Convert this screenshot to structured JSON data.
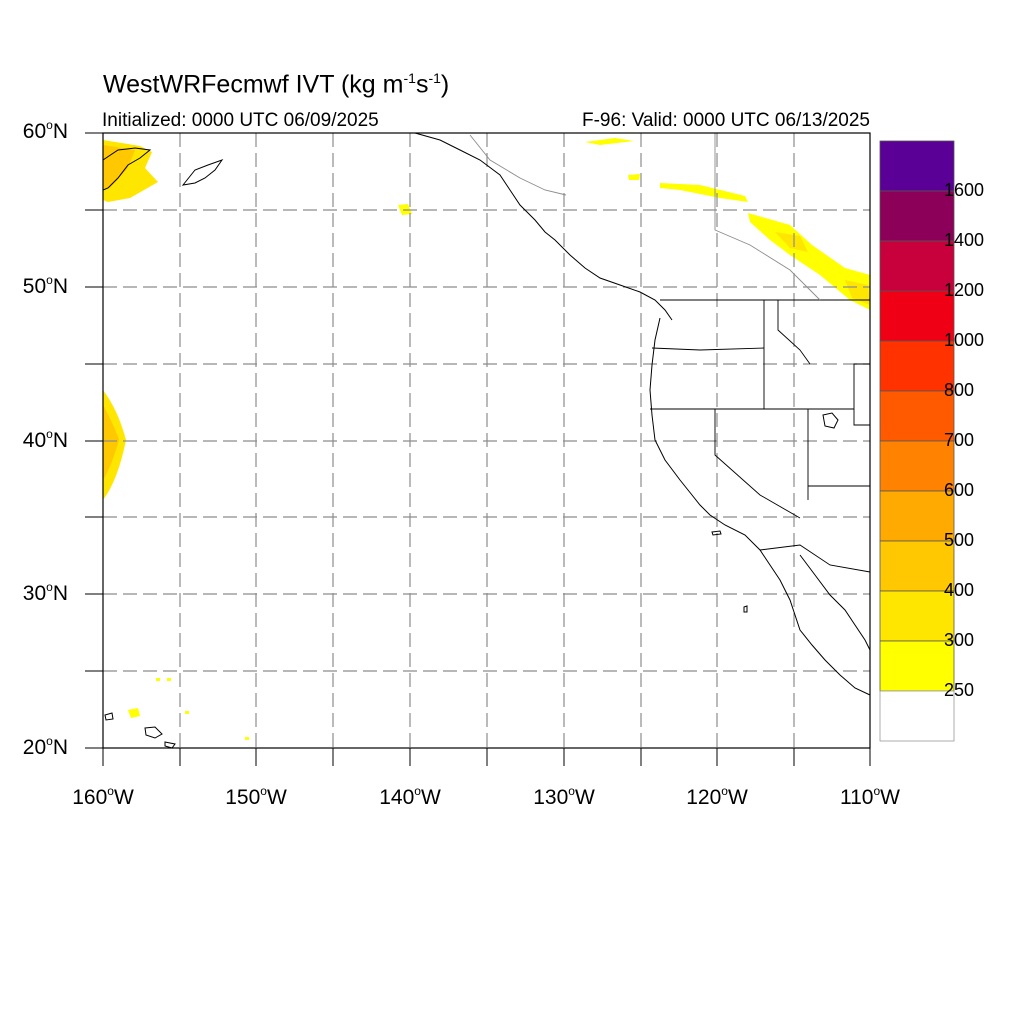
{
  "title": {
    "prefix": "WestWRFecmwf IVT (kg m",
    "exp1": "-1",
    "mid": "s",
    "exp2": "-1",
    "suffix": ")"
  },
  "initialized": "Initialized: 0000 UTC 06/09/2025",
  "valid": "F-96: Valid: 0000 UTC 06/13/2025",
  "lat_labels": [
    {
      "num": "60",
      "hemi": "N"
    },
    {
      "num": "50",
      "hemi": "N"
    },
    {
      "num": "40",
      "hemi": "N"
    },
    {
      "num": "30",
      "hemi": "N"
    },
    {
      "num": "20",
      "hemi": "N"
    }
  ],
  "lon_labels": [
    {
      "num": "160",
      "hemi": "W"
    },
    {
      "num": "150",
      "hemi": "W"
    },
    {
      "num": "140",
      "hemi": "W"
    },
    {
      "num": "130",
      "hemi": "W"
    },
    {
      "num": "120",
      "hemi": "W"
    },
    {
      "num": "110",
      "hemi": "W"
    }
  ],
  "deg_symbol": "o",
  "colorbar": {
    "labels": [
      "1600",
      "1400",
      "1200",
      "1000",
      "800",
      "700",
      "600",
      "500",
      "400",
      "300",
      "250"
    ],
    "colors": [
      "#5a0096",
      "#8c005a",
      "#c8003c",
      "#f00014",
      "#ff3200",
      "#ff5a00",
      "#ff8200",
      "#ffaa00",
      "#ffc800",
      "#ffe600",
      "#ffff00",
      "#ffffff"
    ]
  },
  "map_extent": {
    "lon_min": -160,
    "lon_max": -110,
    "lat_min": 20,
    "lat_max": 60
  }
}
